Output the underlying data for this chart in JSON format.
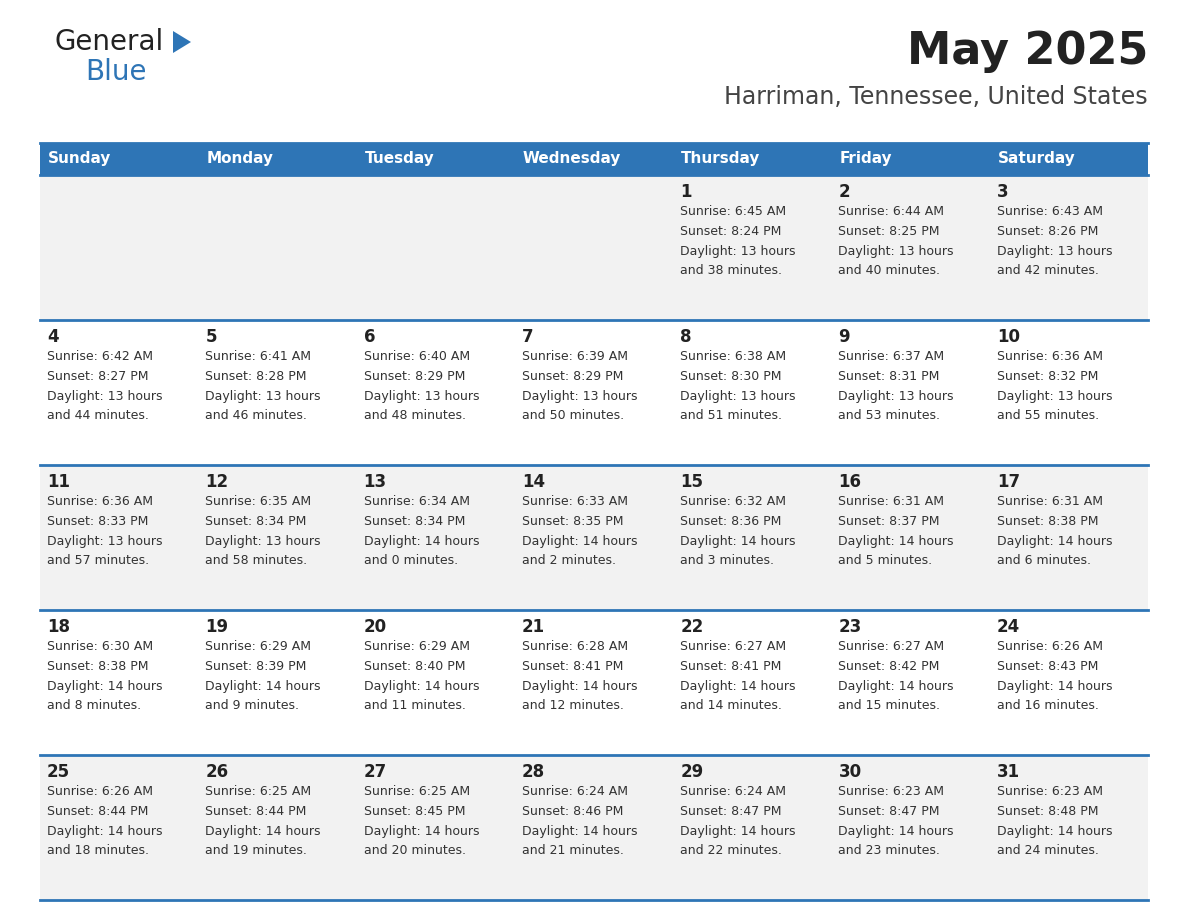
{
  "title": "May 2025",
  "subtitle": "Harriman, Tennessee, United States",
  "days_of_week": [
    "Sunday",
    "Monday",
    "Tuesday",
    "Wednesday",
    "Thursday",
    "Friday",
    "Saturday"
  ],
  "header_bg": "#2e75b6",
  "header_text_color": "#ffffff",
  "row_bg_even": "#f2f2f2",
  "row_bg_odd": "#ffffff",
  "cell_text_color": "#333333",
  "day_num_color": "#222222",
  "border_color": "#2e75b6",
  "title_color": "#222222",
  "subtitle_color": "#444444",
  "calendar_data": [
    [
      null,
      null,
      null,
      null,
      {
        "day": 1,
        "sunrise": "6:45 AM",
        "sunset": "8:24 PM",
        "daylight": "13 hours and 38 minutes."
      },
      {
        "day": 2,
        "sunrise": "6:44 AM",
        "sunset": "8:25 PM",
        "daylight": "13 hours and 40 minutes."
      },
      {
        "day": 3,
        "sunrise": "6:43 AM",
        "sunset": "8:26 PM",
        "daylight": "13 hours and 42 minutes."
      }
    ],
    [
      {
        "day": 4,
        "sunrise": "6:42 AM",
        "sunset": "8:27 PM",
        "daylight": "13 hours and 44 minutes."
      },
      {
        "day": 5,
        "sunrise": "6:41 AM",
        "sunset": "8:28 PM",
        "daylight": "13 hours and 46 minutes."
      },
      {
        "day": 6,
        "sunrise": "6:40 AM",
        "sunset": "8:29 PM",
        "daylight": "13 hours and 48 minutes."
      },
      {
        "day": 7,
        "sunrise": "6:39 AM",
        "sunset": "8:29 PM",
        "daylight": "13 hours and 50 minutes."
      },
      {
        "day": 8,
        "sunrise": "6:38 AM",
        "sunset": "8:30 PM",
        "daylight": "13 hours and 51 minutes."
      },
      {
        "day": 9,
        "sunrise": "6:37 AM",
        "sunset": "8:31 PM",
        "daylight": "13 hours and 53 minutes."
      },
      {
        "day": 10,
        "sunrise": "6:36 AM",
        "sunset": "8:32 PM",
        "daylight": "13 hours and 55 minutes."
      }
    ],
    [
      {
        "day": 11,
        "sunrise": "6:36 AM",
        "sunset": "8:33 PM",
        "daylight": "13 hours and 57 minutes."
      },
      {
        "day": 12,
        "sunrise": "6:35 AM",
        "sunset": "8:34 PM",
        "daylight": "13 hours and 58 minutes."
      },
      {
        "day": 13,
        "sunrise": "6:34 AM",
        "sunset": "8:34 PM",
        "daylight": "14 hours and 0 minutes."
      },
      {
        "day": 14,
        "sunrise": "6:33 AM",
        "sunset": "8:35 PM",
        "daylight": "14 hours and 2 minutes."
      },
      {
        "day": 15,
        "sunrise": "6:32 AM",
        "sunset": "8:36 PM",
        "daylight": "14 hours and 3 minutes."
      },
      {
        "day": 16,
        "sunrise": "6:31 AM",
        "sunset": "8:37 PM",
        "daylight": "14 hours and 5 minutes."
      },
      {
        "day": 17,
        "sunrise": "6:31 AM",
        "sunset": "8:38 PM",
        "daylight": "14 hours and 6 minutes."
      }
    ],
    [
      {
        "day": 18,
        "sunrise": "6:30 AM",
        "sunset": "8:38 PM",
        "daylight": "14 hours and 8 minutes."
      },
      {
        "day": 19,
        "sunrise": "6:29 AM",
        "sunset": "8:39 PM",
        "daylight": "14 hours and 9 minutes."
      },
      {
        "day": 20,
        "sunrise": "6:29 AM",
        "sunset": "8:40 PM",
        "daylight": "14 hours and 11 minutes."
      },
      {
        "day": 21,
        "sunrise": "6:28 AM",
        "sunset": "8:41 PM",
        "daylight": "14 hours and 12 minutes."
      },
      {
        "day": 22,
        "sunrise": "6:27 AM",
        "sunset": "8:41 PM",
        "daylight": "14 hours and 14 minutes."
      },
      {
        "day": 23,
        "sunrise": "6:27 AM",
        "sunset": "8:42 PM",
        "daylight": "14 hours and 15 minutes."
      },
      {
        "day": 24,
        "sunrise": "6:26 AM",
        "sunset": "8:43 PM",
        "daylight": "14 hours and 16 minutes."
      }
    ],
    [
      {
        "day": 25,
        "sunrise": "6:26 AM",
        "sunset": "8:44 PM",
        "daylight": "14 hours and 18 minutes."
      },
      {
        "day": 26,
        "sunrise": "6:25 AM",
        "sunset": "8:44 PM",
        "daylight": "14 hours and 19 minutes."
      },
      {
        "day": 27,
        "sunrise": "6:25 AM",
        "sunset": "8:45 PM",
        "daylight": "14 hours and 20 minutes."
      },
      {
        "day": 28,
        "sunrise": "6:24 AM",
        "sunset": "8:46 PM",
        "daylight": "14 hours and 21 minutes."
      },
      {
        "day": 29,
        "sunrise": "6:24 AM",
        "sunset": "8:47 PM",
        "daylight": "14 hours and 22 minutes."
      },
      {
        "day": 30,
        "sunrise": "6:23 AM",
        "sunset": "8:47 PM",
        "daylight": "14 hours and 23 minutes."
      },
      {
        "day": 31,
        "sunrise": "6:23 AM",
        "sunset": "8:48 PM",
        "daylight": "14 hours and 24 minutes."
      }
    ]
  ],
  "logo_color_general": "#222222",
  "logo_color_blue": "#2e75b6",
  "logo_color_triangle": "#2e75b6"
}
